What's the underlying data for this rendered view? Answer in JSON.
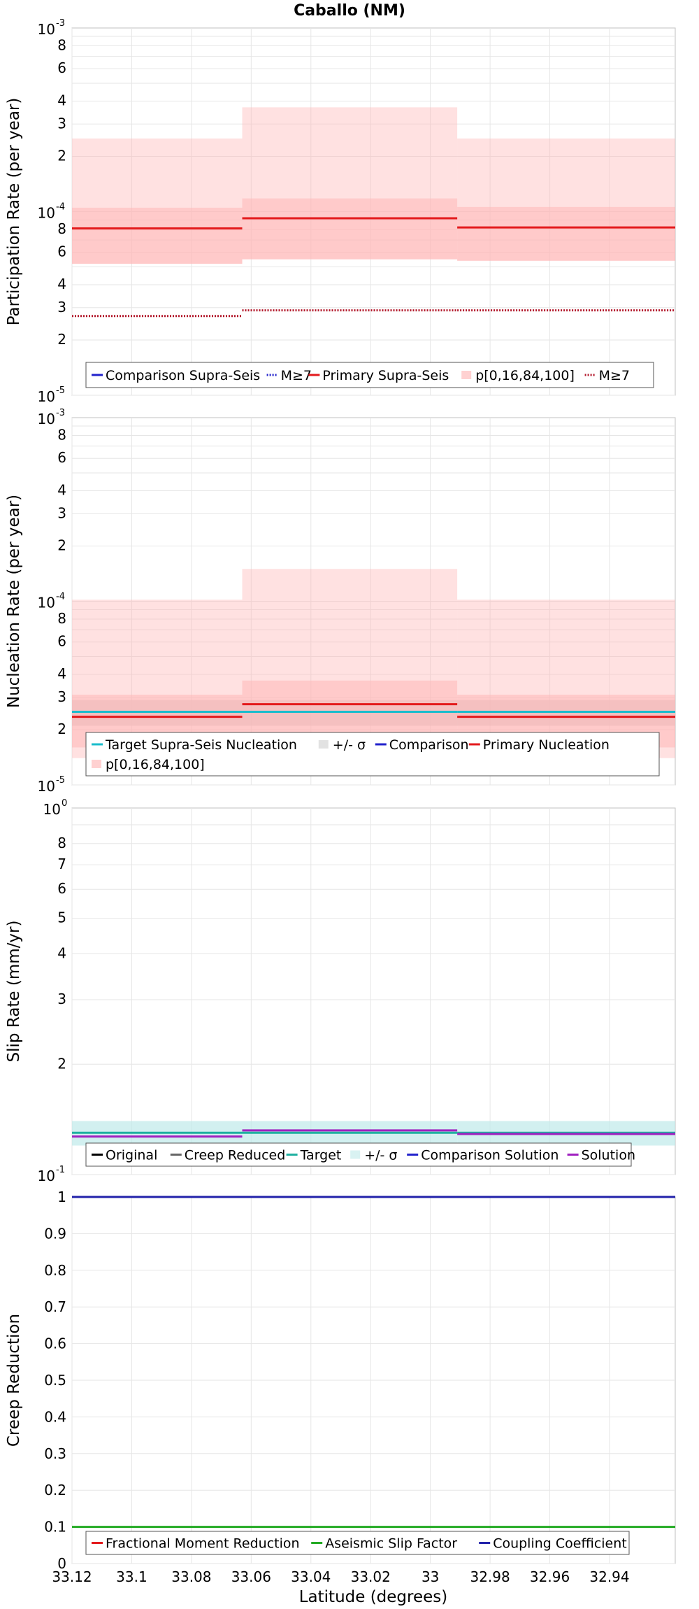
{
  "figure": {
    "title": "Caballo (NM)",
    "xlabel": "Latitude (degrees)",
    "x_ticks": [
      33.12,
      33.1,
      33.08,
      33.06,
      33.04,
      33.02,
      33,
      32.98,
      32.96,
      32.94
    ],
    "x_tick_labels": [
      "33.12",
      "33.1",
      "33.08",
      "33.06",
      "33.04",
      "33.02",
      "33",
      "32.98",
      "32.96",
      "32.94"
    ],
    "xlim": [
      33.12,
      32.918
    ],
    "x_reversed": true
  },
  "chart_data": [
    {
      "type": "line",
      "panel": "participation",
      "ylabel": "Participation Rate (per year)",
      "yscale": "log",
      "ylim": [
        1e-05,
        0.001
      ],
      "grid": true,
      "segments": [
        {
          "x": [
            33.12,
            33.063
          ]
        },
        {
          "x": [
            33.063,
            32.991
          ]
        },
        {
          "x": [
            32.991,
            32.918
          ]
        }
      ],
      "series": [
        {
          "name": "Comparison Supra-Seis",
          "style": "solid",
          "color": "#2222cc",
          "values": [
            null,
            null,
            null
          ]
        },
        {
          "name": "M≥7",
          "style": "dotted",
          "color": "#2222cc",
          "values": [
            null,
            null,
            null
          ]
        },
        {
          "name": "Primary Supra-Seis",
          "style": "solid",
          "color": "#e31a1c",
          "values": [
            8.1e-05,
            9.2e-05,
            8.2e-05
          ]
        },
        {
          "name": "p[0,16,84,100]",
          "style": "band",
          "color": "#ffb3b3",
          "outer_low": [
            5.2e-05,
            5.5e-05,
            5.4e-05
          ],
          "outer_high": [
            0.00025,
            0.00037,
            0.00025
          ],
          "inner_low": [
            5.2e-05,
            5.5e-05,
            5.4e-05
          ],
          "inner_high": [
            0.000105,
            0.000118,
            0.000106
          ]
        },
        {
          "name": "M≥7",
          "style": "dotted",
          "color": "#b2182b",
          "values": [
            2.7e-05,
            2.9e-05,
            2.9e-05
          ]
        }
      ],
      "legend_entries": [
        "Comparison Supra-Seis",
        "M≥7",
        "Primary Supra-Seis",
        "p[0,16,84,100]",
        "M≥7"
      ],
      "legend": "bottom"
    },
    {
      "type": "line",
      "panel": "nucleation",
      "ylabel": "Nucleation Rate (per year)",
      "yscale": "log",
      "ylim": [
        1e-05,
        0.001
      ],
      "grid": true,
      "segments": [
        {
          "x": [
            33.12,
            33.063
          ]
        },
        {
          "x": [
            33.063,
            32.991
          ]
        },
        {
          "x": [
            32.991,
            32.918
          ]
        }
      ],
      "series": [
        {
          "name": "Target Supra-Seis Nucleation",
          "style": "solid",
          "color": "#1abccc",
          "values": [
            2.5e-05,
            2.5e-05,
            2.5e-05
          ]
        },
        {
          "name": "+/- σ",
          "style": "band",
          "color": "#cfcfcf",
          "low": [
            2.1e-05,
            2.1e-05,
            2.1e-05
          ],
          "high": [
            2.9e-05,
            2.9e-05,
            2.9e-05
          ]
        },
        {
          "name": "Comparison",
          "style": "solid",
          "color": "#2222cc",
          "values": [
            null,
            null,
            null
          ]
        },
        {
          "name": "Primary Nucleation",
          "style": "solid",
          "color": "#e31a1c",
          "values": [
            2.35e-05,
            2.75e-05,
            2.35e-05
          ]
        },
        {
          "name": "p[0,16,84,100]",
          "style": "band",
          "color": "#ffb3b3",
          "outer_low": [
            1.4e-05,
            1.4e-05,
            1.4e-05
          ],
          "outer_high": [
            0.000102,
            0.00015,
            0.000102
          ],
          "inner_low": [
            1.6e-05,
            1.8e-05,
            1.6e-05
          ],
          "inner_high": [
            3.1e-05,
            3.7e-05,
            3.1e-05
          ]
        }
      ],
      "legend_entries": [
        "Target Supra-Seis Nucleation",
        "+/- σ",
        "Comparison",
        "Primary Nucleation",
        "p[0,16,84,100]"
      ],
      "legend": "bottom"
    },
    {
      "type": "line",
      "panel": "slip_rate",
      "ylabel": "Slip Rate (mm/yr)",
      "yscale": "log",
      "ylim": [
        0.1,
        1
      ],
      "grid": true,
      "segments": [
        {
          "x": [
            33.12,
            33.063
          ]
        },
        {
          "x": [
            33.063,
            32.991
          ]
        },
        {
          "x": [
            32.991,
            32.918
          ]
        }
      ],
      "series": [
        {
          "name": "Original",
          "style": "solid",
          "color": "#000000",
          "values": [
            null,
            null,
            null
          ]
        },
        {
          "name": "Creep Reduced",
          "style": "solid",
          "color": "#666666",
          "values": [
            null,
            null,
            null
          ]
        },
        {
          "name": "Target",
          "style": "solid",
          "color": "#1fb0a0",
          "values": [
            0.13,
            0.13,
            0.13
          ]
        },
        {
          "name": "+/- σ",
          "style": "band",
          "color": "#bfe9e9",
          "low": [
            0.12,
            0.12,
            0.12
          ],
          "high": [
            0.14,
            0.14,
            0.14
          ]
        },
        {
          "name": "Comparison Solution",
          "style": "solid",
          "color": "#2222cc",
          "values": [
            null,
            null,
            null
          ]
        },
        {
          "name": "Solution",
          "style": "solid",
          "color": "#a020c0",
          "values": [
            0.127,
            0.132,
            0.129
          ]
        }
      ],
      "legend_entries": [
        "Original",
        "Creep Reduced",
        "Target",
        "+/- σ",
        "Comparison Solution",
        "Solution"
      ],
      "legend": "bottom"
    },
    {
      "type": "line",
      "panel": "creep_reduction",
      "ylabel": "Creep Reduction",
      "yscale": "linear",
      "ylim": [
        0,
        1
      ],
      "y_ticks": [
        0,
        0.1,
        0.2,
        0.3,
        0.4,
        0.5,
        0.6,
        0.7,
        0.8,
        0.9,
        1
      ],
      "grid": true,
      "segments": [
        {
          "x": [
            33.12,
            32.918
          ]
        }
      ],
      "series": [
        {
          "name": "Fractional Moment Reduction",
          "style": "solid",
          "color": "#e31a1c",
          "values": [
            null
          ]
        },
        {
          "name": "Aseismic Slip Factor",
          "style": "solid",
          "color": "#22aa22",
          "values": [
            0.1
          ]
        },
        {
          "name": "Coupling Coefficient",
          "style": "solid",
          "color": "#2222aa",
          "values": [
            1.0
          ]
        }
      ],
      "legend_entries": [
        "Fractional Moment Reduction",
        "Aseismic Slip Factor",
        "Coupling Coefficient"
      ],
      "legend": "bottom"
    }
  ],
  "tick_text": {
    "log_participation": {
      "top_base": "10",
      "top_exp": "-3",
      "mid_base": "10",
      "mid_exp": "-4",
      "bot_base": "10",
      "bot_exp": "-5"
    },
    "log_nucleation": {
      "top_base": "10",
      "top_exp": "-3",
      "mid_base": "10",
      "mid_exp": "-4",
      "bot_base": "10",
      "bot_exp": "-5"
    },
    "log_slip": {
      "top_base": "10",
      "top_exp": "0",
      "bot_base": "10",
      "bot_exp": "-1"
    }
  }
}
